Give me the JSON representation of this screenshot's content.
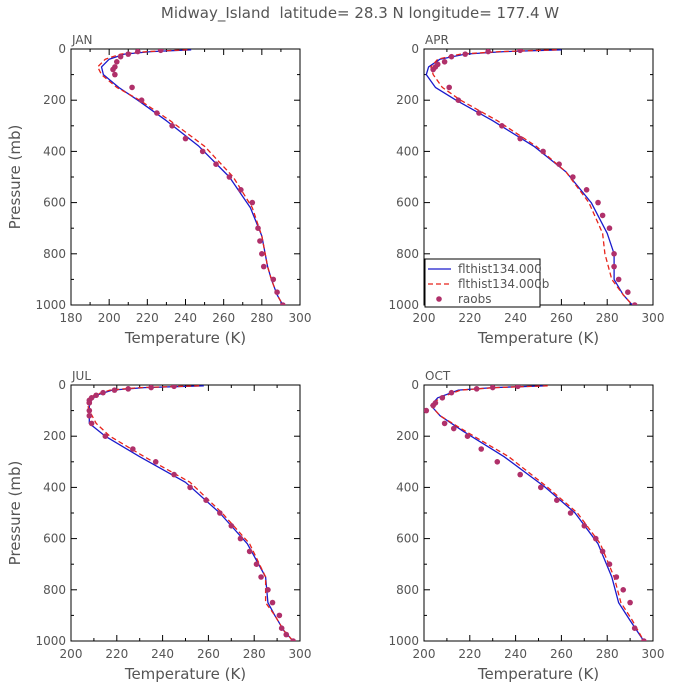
{
  "figure": {
    "title": "Midway_Island  latitude= 28.3 N longitude= 177.4 W"
  },
  "legend": {
    "entries": [
      {
        "label": "flthist134.000",
        "color": "#1a1acc",
        "style": "solid"
      },
      {
        "label": "flthist134.000b",
        "color": "#e8231a",
        "style": "dashed"
      },
      {
        "label": "raobs",
        "color": "#b0306a",
        "style": "dot"
      }
    ]
  },
  "chart_data": [
    {
      "type": "line",
      "panel_label": "JAN",
      "xlabel": "Temperature (K)",
      "ylabel": "Pressure (mb)",
      "xlim": [
        180,
        300
      ],
      "ylim": [
        0,
        1000
      ],
      "y_inverted": true,
      "xticks": [
        180,
        200,
        220,
        240,
        260,
        280,
        300
      ],
      "yticks": [
        0,
        200,
        400,
        600,
        800,
        1000
      ],
      "series": [
        {
          "name": "flthist134.000",
          "style": "solid",
          "color": "#1a1acc",
          "x": [
            243,
            222,
            208,
            200,
            196,
            197,
            205,
            215,
            230,
            247,
            263,
            274,
            280,
            283,
            285,
            288,
            291
          ],
          "y": [
            3,
            10,
            20,
            40,
            70,
            100,
            150,
            200,
            280,
            380,
            500,
            620,
            730,
            850,
            900,
            960,
            1000
          ]
        },
        {
          "name": "flthist134.000b",
          "style": "dashed",
          "color": "#e8231a",
          "x": [
            241,
            220,
            206,
            198,
            194,
            196,
            204,
            216,
            232,
            250,
            265,
            275,
            280,
            283,
            285,
            288,
            291
          ],
          "y": [
            3,
            10,
            20,
            40,
            70,
            100,
            150,
            200,
            280,
            380,
            500,
            620,
            730,
            850,
            900,
            960,
            1000
          ]
        },
        {
          "name": "raobs",
          "style": "dot",
          "color": "#b0306a",
          "x": [
            227,
            215,
            210,
            206,
            204,
            203,
            202,
            203,
            212,
            217,
            225,
            233,
            240,
            249,
            256,
            263,
            269,
            275,
            278,
            279,
            280,
            281,
            286,
            288,
            291
          ],
          "y": [
            5,
            10,
            20,
            30,
            50,
            70,
            80,
            100,
            150,
            200,
            250,
            300,
            350,
            400,
            450,
            500,
            550,
            600,
            700,
            750,
            800,
            850,
            900,
            950,
            1000
          ]
        }
      ]
    },
    {
      "type": "line",
      "panel_label": "APR",
      "xlabel": "Temperature (K)",
      "ylabel": "",
      "xlim": [
        200,
        300
      ],
      "ylim": [
        0,
        1000
      ],
      "y_inverted": true,
      "xticks": [
        200,
        220,
        240,
        260,
        280,
        300
      ],
      "yticks": [
        0,
        200,
        400,
        600,
        800,
        1000
      ],
      "series": [
        {
          "name": "flthist134.000",
          "style": "solid",
          "color": "#1a1acc",
          "x": [
            260,
            235,
            218,
            207,
            202,
            201,
            205,
            214,
            230,
            248,
            262,
            273,
            280,
            283,
            283,
            287,
            291
          ],
          "y": [
            3,
            10,
            20,
            40,
            70,
            100,
            150,
            200,
            280,
            380,
            480,
            600,
            720,
            800,
            900,
            960,
            1000
          ]
        },
        {
          "name": "flthist134.000b",
          "style": "dashed",
          "color": "#e8231a",
          "x": [
            258,
            233,
            216,
            206,
            203,
            204,
            208,
            216,
            232,
            249,
            262,
            272,
            278,
            279,
            282,
            287,
            291
          ],
          "y": [
            3,
            10,
            20,
            40,
            70,
            100,
            150,
            200,
            280,
            380,
            480,
            600,
            720,
            800,
            900,
            960,
            1000
          ]
        },
        {
          "name": "raobs",
          "style": "dot",
          "color": "#b0306a",
          "x": [
            242,
            228,
            218,
            212,
            209,
            206,
            205,
            204,
            211,
            215,
            224,
            234,
            242,
            252,
            259,
            265,
            271,
            276,
            278,
            281,
            283,
            283,
            285,
            289,
            292
          ],
          "y": [
            5,
            10,
            20,
            30,
            50,
            60,
            70,
            80,
            150,
            200,
            250,
            300,
            350,
            400,
            450,
            500,
            550,
            600,
            650,
            700,
            800,
            850,
            900,
            950,
            1000
          ]
        }
      ]
    },
    {
      "type": "line",
      "panel_label": "JUL",
      "xlabel": "Temperature (K)",
      "ylabel": "Pressure (mb)",
      "xlim": [
        200,
        300
      ],
      "ylim": [
        0,
        1000
      ],
      "y_inverted": true,
      "xticks": [
        200,
        220,
        240,
        260,
        280,
        300
      ],
      "yticks": [
        0,
        200,
        400,
        600,
        800,
        1000
      ],
      "series": [
        {
          "name": "flthist134.000",
          "style": "solid",
          "color": "#1a1acc",
          "x": [
            258,
            232,
            218,
            211,
            208,
            208,
            208,
            215,
            230,
            250,
            265,
            277,
            285,
            286,
            289,
            293,
            297
          ],
          "y": [
            3,
            10,
            20,
            40,
            70,
            100,
            150,
            200,
            280,
            380,
            500,
            620,
            750,
            850,
            900,
            960,
            1000
          ]
        },
        {
          "name": "flthist134.000b",
          "style": "dashed",
          "color": "#e8231a",
          "x": [
            256,
            230,
            217,
            210,
            207,
            208,
            211,
            217,
            232,
            252,
            266,
            278,
            285,
            285,
            289,
            293,
            297
          ],
          "y": [
            3,
            10,
            20,
            40,
            70,
            100,
            150,
            200,
            280,
            380,
            500,
            620,
            750,
            850,
            900,
            960,
            1000
          ]
        },
        {
          "name": "raobs",
          "style": "dot",
          "color": "#b0306a",
          "x": [
            245,
            235,
            225,
            219,
            214,
            211,
            209,
            208,
            208,
            208,
            208,
            209,
            215,
            227,
            237,
            245,
            252,
            259,
            265,
            270,
            274,
            278,
            281,
            283,
            286,
            288,
            291,
            292,
            294,
            297
          ],
          "y": [
            5,
            10,
            15,
            20,
            30,
            40,
            50,
            60,
            70,
            100,
            120,
            150,
            200,
            250,
            300,
            350,
            400,
            450,
            500,
            550,
            600,
            650,
            700,
            750,
            800,
            850,
            900,
            950,
            975,
            1000
          ]
        }
      ]
    },
    {
      "type": "line",
      "panel_label": "OCT",
      "xlabel": "Temperature (K)",
      "ylabel": "",
      "xlim": [
        200,
        300
      ],
      "ylim": [
        0,
        1000
      ],
      "y_inverted": true,
      "xticks": [
        200,
        220,
        240,
        260,
        280,
        300
      ],
      "yticks": [
        0,
        200,
        400,
        600,
        800,
        1000
      ],
      "series": [
        {
          "name": "flthist134.000",
          "style": "solid",
          "color": "#1a1acc",
          "x": [
            253,
            230,
            215,
            206,
            203,
            207,
            217,
            235,
            253,
            266,
            276,
            282,
            285,
            290,
            296
          ],
          "y": [
            3,
            10,
            20,
            50,
            80,
            120,
            180,
            280,
            400,
            500,
            620,
            750,
            850,
            920,
            1000
          ]
        },
        {
          "name": "flthist134.000b",
          "style": "dashed",
          "color": "#e8231a",
          "x": [
            254,
            231,
            216,
            207,
            203,
            207,
            218,
            237,
            254,
            267,
            277,
            283,
            286,
            291,
            296
          ],
          "y": [
            3,
            10,
            20,
            50,
            80,
            120,
            180,
            280,
            400,
            500,
            620,
            750,
            850,
            920,
            1000
          ]
        },
        {
          "name": "raobs",
          "style": "dot",
          "color": "#b0306a",
          "x": [
            241,
            230,
            223,
            212,
            208,
            205,
            204,
            201,
            209,
            213,
            219,
            225,
            232,
            242,
            251,
            258,
            264,
            270,
            275,
            278,
            281,
            284,
            287,
            290,
            292,
            296
          ],
          "y": [
            5,
            10,
            15,
            30,
            50,
            70,
            80,
            100,
            150,
            170,
            200,
            250,
            300,
            350,
            400,
            450,
            500,
            550,
            600,
            650,
            700,
            750,
            800,
            850,
            950,
            1000
          ]
        }
      ]
    }
  ]
}
